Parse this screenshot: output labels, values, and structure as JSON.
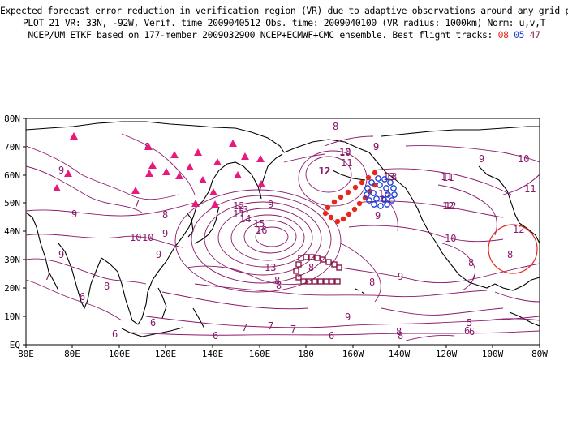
{
  "title": {
    "line1": "Expected forecast error reduction in verification region (VR) due to adaptive observations around any grid point.",
    "line2": "PLOT 21 VR: 33N, -92W, Verif. time 2009040512 Obs. time: 2009040100 (VR radius: 1000km) Norm: u,v,T",
    "line3_prefix": "NCEP/UM ETKF based on 177-member 2009032900 NCEP+ECMWF+CMC ensemble. Best flight tracks:",
    "tracks": [
      {
        "label": "08",
        "color": "#e8271b"
      },
      {
        "label": "05",
        "color": "#1c3fd8"
      },
      {
        "label": "47",
        "color": "#8b1a4b"
      }
    ]
  },
  "map": {
    "lon_labels": [
      "80E",
      "80E",
      "100E",
      "120E",
      "140E",
      "160E",
      "180",
      "160W",
      "140W",
      "120W",
      "100W",
      "80W"
    ],
    "lat_labels": [
      "EQ",
      "10N",
      "20N",
      "30N",
      "40N",
      "50N",
      "60N",
      "70N",
      "80N"
    ],
    "contour_color": "#8b1a6b",
    "contour_labels": [
      "8",
      "9",
      "9",
      "10",
      "11",
      "12",
      "13",
      "13",
      "12",
      "11",
      "10",
      "9",
      "8",
      "7",
      "6",
      "6",
      "8",
      "9",
      "9",
      "7",
      "6",
      "8",
      "9",
      "10",
      "16",
      "15",
      "14",
      "13",
      "12",
      "9",
      "10",
      "11",
      "12",
      "9",
      "8",
      "7",
      "5",
      "6",
      "8",
      "8",
      "7",
      "6",
      "7",
      "6",
      "9",
      "8",
      "10",
      "9",
      "8",
      "7",
      "6",
      "12",
      "11",
      "10",
      "9",
      "8",
      "8",
      "8",
      "9",
      "9",
      "10",
      "11",
      "12",
      "13"
    ]
  },
  "markers": {
    "triangle_color": "#e8197d",
    "red_track_color": "#e8271b",
    "blue_track_color": "#1c3fd8",
    "purple_track_color": "#8b1a4b",
    "vr_circle_color": "#e8271b"
  }
}
